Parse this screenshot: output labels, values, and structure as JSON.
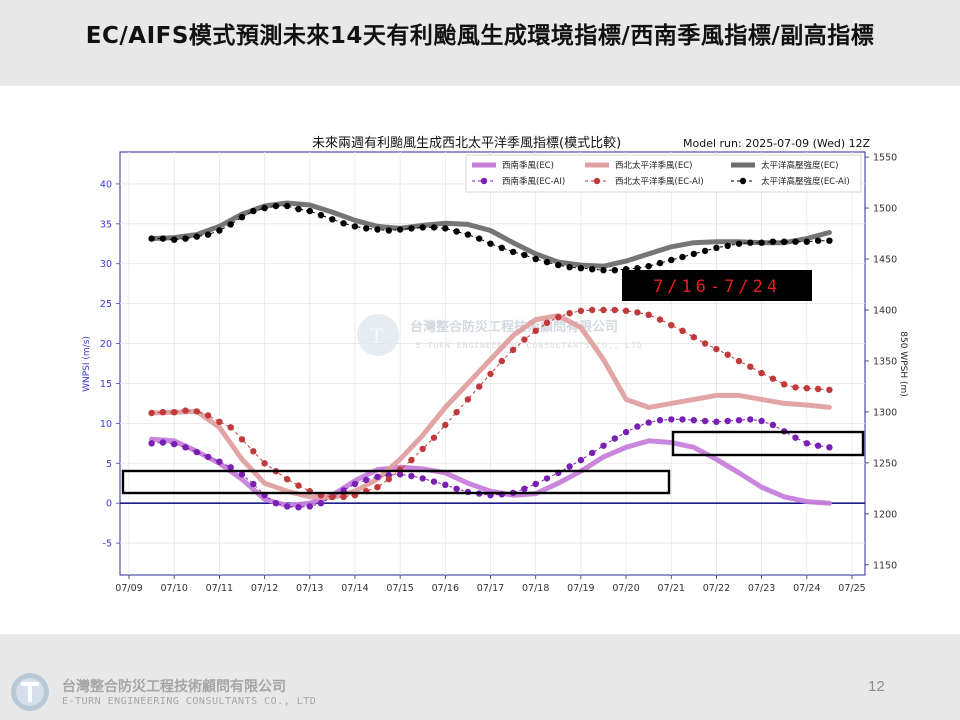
{
  "header": {
    "title": "EC/AIFS模式預測未來14天有利颱風生成環境指標/西南季風指標/副高指標"
  },
  "footer": {
    "company": "台灣整合防災工程技術顧問有限公司",
    "company_en": "E-TURN ENGINEERING CONSULTANTS CO., LTD",
    "page_number": "12"
  },
  "watermark": {
    "text_cn": "台灣整合防災工程技術顧問有限公司",
    "text_en": "E-TURN ENGINEERING CONSULTANTS CO., LTD"
  },
  "chart_data": {
    "type": "line",
    "title": "未來兩週有利颱風生成西北太平洋季風指標(模式比較)",
    "model_run": "Model run: 2025-07-09 (Wed) 12Z",
    "xlabel": "",
    "ylabel_left": "WNPSI (m/s)",
    "ylabel_right": "850 WPSH (m)",
    "x_ticks": [
      "07/09",
      "07/10",
      "07/11",
      "07/12",
      "07/13",
      "07/14",
      "07/15",
      "07/16",
      "07/17",
      "07/18",
      "07/19",
      "07/20",
      "07/21",
      "07/22",
      "07/23",
      "07/24",
      "07/25"
    ],
    "xlim": [
      0,
      16
    ],
    "ylim_left": [
      -9,
      44
    ],
    "ylim_right": [
      1140,
      1555
    ],
    "yticks_left": [
      40,
      35,
      30,
      25,
      20,
      15,
      10,
      5,
      0,
      -5
    ],
    "yticks_right": [
      1550,
      1500,
      1450,
      1400,
      1350,
      1300,
      1250,
      1200,
      1150
    ],
    "zero_line": 0,
    "annotation_period": "7/16-7/24",
    "legend_position": "top-right",
    "colors": {
      "sw_monsoon_ec": "#c77fdb",
      "sw_monsoon_ai": "#7a1fb3",
      "wnp_monsoon_ec": "#e0a0a0",
      "wnp_monsoon_ai": "#c0393b",
      "wpsh_ec": "#6e6e6e",
      "wpsh_ai": "#000000",
      "zero_line": "#1c1c8c",
      "period_box": "#000000",
      "period_text": "#e61e1e"
    },
    "series": [
      {
        "name": "西南季風(EC)",
        "axis": "left",
        "style": "line",
        "color_key": "sw_monsoon_ec",
        "x": [
          0.5,
          1.0,
          1.5,
          2.0,
          2.5,
          3.0,
          3.5,
          4.0,
          4.5,
          5.0,
          5.5,
          6.0,
          6.5,
          7.0,
          7.5,
          8.0,
          8.5,
          9.0,
          9.5,
          10.0,
          10.5,
          11.0,
          11.5,
          12.0,
          12.5,
          13.0,
          13.5,
          14.0,
          14.5,
          15.0,
          15.5
        ],
        "values": [
          8.0,
          7.8,
          6.5,
          5.0,
          3.0,
          0.5,
          -0.3,
          0.0,
          1.0,
          2.8,
          4.2,
          4.5,
          4.3,
          3.8,
          2.5,
          1.5,
          1.0,
          1.2,
          2.5,
          4.0,
          5.8,
          7.0,
          7.8,
          7.6,
          7.0,
          5.5,
          3.8,
          2.0,
          0.8,
          0.2,
          0.0
        ]
      },
      {
        "name": "西南季風(EC-AI)",
        "axis": "left",
        "style": "dotted",
        "color_key": "sw_monsoon_ai",
        "x": [
          0.5,
          0.75,
          1.0,
          1.25,
          1.5,
          1.75,
          2.0,
          2.25,
          2.5,
          2.75,
          3.0,
          3.25,
          3.5,
          3.75,
          4.0,
          4.25,
          4.5,
          4.75,
          5.0,
          5.25,
          5.5,
          5.75,
          6.0,
          6.25,
          6.5,
          6.75,
          7.0,
          7.25,
          7.5,
          7.75,
          8.0,
          8.25,
          8.5,
          8.75,
          9.0,
          9.25,
          9.5,
          9.75,
          10.0,
          10.25,
          10.5,
          10.75,
          11.0,
          11.25,
          11.5,
          11.75,
          12.0,
          12.25,
          12.5,
          12.75,
          13.0,
          13.25,
          13.5,
          13.75,
          14.0,
          14.25,
          14.5,
          14.75,
          15.0,
          15.25,
          15.5
        ],
        "values": [
          7.5,
          7.6,
          7.4,
          7.0,
          6.4,
          5.8,
          5.2,
          4.5,
          3.6,
          2.4,
          1.0,
          0.0,
          -0.4,
          -0.5,
          -0.4,
          0.0,
          0.8,
          1.6,
          2.4,
          2.9,
          3.3,
          3.5,
          3.6,
          3.4,
          3.1,
          2.7,
          2.3,
          1.8,
          1.4,
          1.2,
          1.0,
          1.1,
          1.3,
          1.8,
          2.4,
          3.1,
          3.8,
          4.6,
          5.4,
          6.3,
          7.2,
          8.1,
          8.9,
          9.6,
          10.1,
          10.4,
          10.5,
          10.5,
          10.4,
          10.3,
          10.2,
          10.3,
          10.4,
          10.5,
          10.3,
          9.8,
          9.0,
          8.2,
          7.5,
          7.2,
          7.0
        ]
      },
      {
        "name": "西北太平洋季風(EC)",
        "axis": "left",
        "style": "line",
        "color_key": "wnp_monsoon_ec",
        "x": [
          0.5,
          1.0,
          1.5,
          2.0,
          2.5,
          3.0,
          3.5,
          4.0,
          4.5,
          5.0,
          5.5,
          6.0,
          6.5,
          7.0,
          7.5,
          8.0,
          8.5,
          9.0,
          9.5,
          10.0,
          10.5,
          11.0,
          11.5,
          12.0,
          12.5,
          13.0,
          13.5,
          14.0,
          14.5,
          15.0,
          15.5
        ],
        "values": [
          11.3,
          11.4,
          11.5,
          9.5,
          5.5,
          2.5,
          1.5,
          0.8,
          0.7,
          1.5,
          3.0,
          5.5,
          8.5,
          12.0,
          15.0,
          18.0,
          21.0,
          23.0,
          23.5,
          22.0,
          18.0,
          13.0,
          12.0,
          12.5,
          13.0,
          13.5,
          13.5,
          13.0,
          12.5,
          12.3,
          12.0
        ]
      },
      {
        "name": "西北太平洋季風(EC-AI)",
        "axis": "left",
        "style": "dotted",
        "color_key": "wnp_monsoon_ai",
        "x": [
          0.5,
          0.75,
          1.0,
          1.25,
          1.5,
          1.75,
          2.0,
          2.25,
          2.5,
          2.75,
          3.0,
          3.25,
          3.5,
          3.75,
          4.0,
          4.25,
          4.5,
          4.75,
          5.0,
          5.25,
          5.5,
          5.75,
          6.0,
          6.25,
          6.5,
          6.75,
          7.0,
          7.25,
          7.5,
          7.75,
          8.0,
          8.25,
          8.5,
          8.75,
          9.0,
          9.25,
          9.5,
          9.75,
          10.0,
          10.25,
          10.5,
          10.75,
          11.0,
          11.25,
          11.5,
          11.75,
          12.0,
          12.25,
          12.5,
          12.75,
          13.0,
          13.25,
          13.5,
          13.75,
          14.0,
          14.25,
          14.5,
          14.75,
          15.0,
          15.25,
          15.5
        ],
        "values": [
          11.3,
          11.4,
          11.4,
          11.6,
          11.5,
          11.0,
          10.2,
          9.5,
          8.0,
          6.5,
          5.0,
          4.0,
          3.0,
          2.2,
          1.5,
          1.0,
          0.8,
          0.8,
          1.0,
          1.5,
          2.0,
          3.0,
          4.2,
          5.4,
          6.8,
          8.2,
          9.8,
          11.4,
          13.0,
          14.6,
          16.2,
          17.8,
          19.2,
          20.5,
          21.6,
          22.6,
          23.3,
          23.8,
          24.1,
          24.2,
          24.2,
          24.2,
          24.1,
          23.9,
          23.6,
          23.0,
          22.3,
          21.6,
          20.8,
          20.0,
          19.3,
          18.6,
          17.8,
          17.1,
          16.3,
          15.6,
          14.9,
          14.5,
          14.4,
          14.3,
          14.2
        ]
      },
      {
        "name": "太平洋高壓強度(EC)",
        "axis": "right",
        "style": "line",
        "color_key": "wpsh_ec",
        "x": [
          0.5,
          1.0,
          1.5,
          2.0,
          2.5,
          3.0,
          3.5,
          4.0,
          4.5,
          5.0,
          5.5,
          6.0,
          6.5,
          7.0,
          7.5,
          8.0,
          8.5,
          9.0,
          9.5,
          10.0,
          10.5,
          11.0,
          11.5,
          12.0,
          12.5,
          13.0,
          13.5,
          14.0,
          14.5,
          15.0,
          15.5
        ],
        "values": [
          1470,
          1471,
          1474,
          1482,
          1494,
          1502,
          1505,
          1503,
          1496,
          1488,
          1482,
          1480,
          1483,
          1485,
          1484,
          1478,
          1466,
          1455,
          1447,
          1444,
          1443,
          1448,
          1455,
          1462,
          1466,
          1467,
          1467,
          1466,
          1466,
          1470,
          1476
        ]
      },
      {
        "name": "太平洋高壓強度(EC-AI)",
        "axis": "right",
        "style": "dotted",
        "color_key": "wpsh_ai",
        "x": [
          0.5,
          0.75,
          1.0,
          1.25,
          1.5,
          1.75,
          2.0,
          2.25,
          2.5,
          2.75,
          3.0,
          3.25,
          3.5,
          3.75,
          4.0,
          4.25,
          4.5,
          4.75,
          5.0,
          5.25,
          5.5,
          5.75,
          6.0,
          6.25,
          6.5,
          6.75,
          7.0,
          7.25,
          7.5,
          7.75,
          8.0,
          8.25,
          8.5,
          8.75,
          9.0,
          9.25,
          9.5,
          9.75,
          10.0,
          10.25,
          10.5,
          10.75,
          11.0,
          11.25,
          11.5,
          11.75,
          12.0,
          12.25,
          12.5,
          12.75,
          13.0,
          13.25,
          13.5,
          13.75,
          14.0,
          14.25,
          14.5,
          14.75,
          15.0,
          15.25,
          15.5
        ],
        "values": [
          1470,
          1470,
          1469,
          1470,
          1472,
          1474,
          1478,
          1484,
          1491,
          1497,
          1500,
          1502,
          1502,
          1499,
          1497,
          1493,
          1489,
          1485,
          1482,
          1480,
          1479,
          1478,
          1479,
          1480,
          1481,
          1481,
          1480,
          1477,
          1474,
          1470,
          1465,
          1461,
          1457,
          1454,
          1450,
          1447,
          1444,
          1442,
          1441,
          1440,
          1439,
          1439,
          1440,
          1441,
          1443,
          1446,
          1449,
          1452,
          1455,
          1458,
          1461,
          1463,
          1465,
          1466,
          1466,
          1467,
          1467,
          1467,
          1467,
          1468,
          1468
        ]
      }
    ]
  }
}
